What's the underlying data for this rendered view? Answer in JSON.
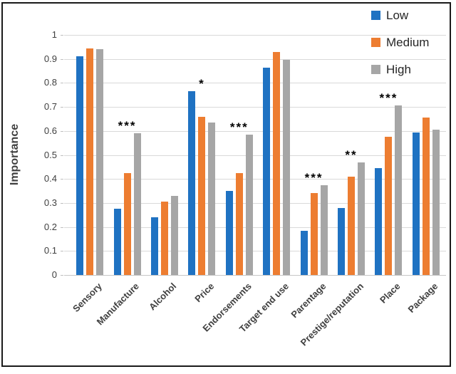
{
  "chart_data": {
    "type": "bar",
    "title": "",
    "ylabel": "Importance",
    "xlabel": "",
    "ylim": [
      0,
      1
    ],
    "grid": true,
    "legend_position": "top-right",
    "categories": [
      "Sensory",
      "Manufacture",
      "Alcohol",
      "Price",
      "Endorsements",
      "Target end use",
      "Parentage",
      "Prestige/reputation",
      "Place",
      "Package"
    ],
    "series": [
      {
        "name": "Low",
        "color": "#1f72c2",
        "values": [
          0.91,
          0.275,
          0.24,
          0.765,
          0.35,
          0.865,
          0.185,
          0.28,
          0.445,
          0.595
        ]
      },
      {
        "name": "Medium",
        "color": "#ed7d31",
        "values": [
          0.945,
          0.425,
          0.305,
          0.66,
          0.425,
          0.93,
          0.34,
          0.41,
          0.575,
          0.655
        ]
      },
      {
        "name": "High",
        "color": "#a6a6a6",
        "values": [
          0.94,
          0.59,
          0.33,
          0.635,
          0.585,
          0.895,
          0.375,
          0.47,
          0.705,
          0.605
        ]
      }
    ],
    "significance": [
      "",
      "***",
      "",
      "*",
      "***",
      "",
      "***",
      "**",
      "***",
      ""
    ],
    "yticks": [
      {
        "value": 1.0,
        "label": "1"
      },
      {
        "value": 0.9,
        "label": "0.9"
      },
      {
        "value": 0.8,
        "label": "0.8"
      },
      {
        "value": 0.7,
        "label": "0.7"
      },
      {
        "value": 0.6,
        "label": "0.6"
      },
      {
        "value": 0.5,
        "label": "0.5"
      },
      {
        "value": 0.4,
        "label": "0.4"
      },
      {
        "value": 0.3,
        "label": "0.3"
      },
      {
        "value": 0.2,
        "label": "0.2"
      },
      {
        "value": 0.1,
        "label": "0.1"
      },
      {
        "value": 0.0,
        "label": "0"
      }
    ]
  },
  "colors": {
    "gridline": "#d9d9d9",
    "axis_line": "#c6c6c6",
    "tick_text": "#404040",
    "label_text": "#3f3f3f",
    "legend_text": "#262626",
    "marker": "#000000",
    "frame_border": "#1a1a1a"
  }
}
